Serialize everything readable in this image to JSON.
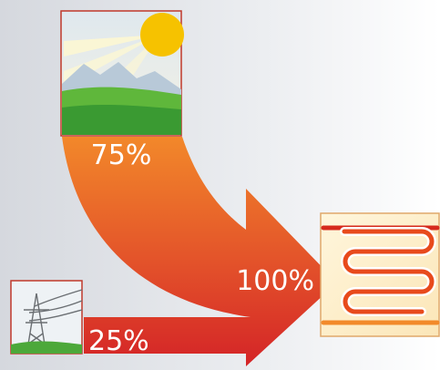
{
  "flow": {
    "environment_share": "75%",
    "grid_share": "25%",
    "output_share": "100%"
  },
  "colors": {
    "arrow_top": "#f2882a",
    "arrow_bottom": "#d42427",
    "panel_border": "#c0392b",
    "heating_coil": "#e84a1c"
  },
  "icons": {
    "environment": "sun-landscape-icon",
    "grid": "power-pylon-icon",
    "heater": "floor-heating-coil-icon"
  }
}
